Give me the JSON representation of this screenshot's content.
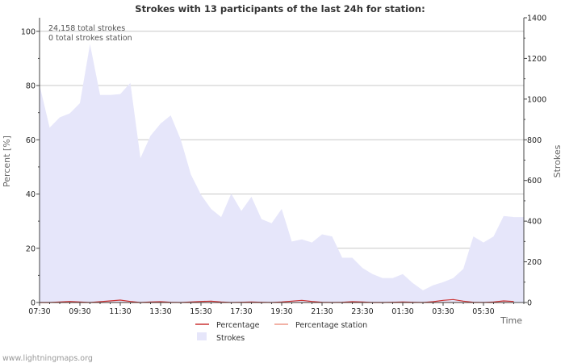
{
  "chart_data": {
    "type": "area",
    "title": "Strokes with 13 participants of the last 24h for station:",
    "ylabel_left": "Percent   [%]",
    "ylabel_right": "Strokes",
    "xlabel": "Time",
    "ylim_left": [
      0,
      105
    ],
    "ylim_right": [
      0,
      1400
    ],
    "yticks_left": [
      0,
      20,
      40,
      60,
      80,
      100
    ],
    "yticks_right": [
      0,
      200,
      400,
      600,
      800,
      1000,
      1200,
      1400
    ],
    "xtick_labels": [
      "07:30",
      "09:30",
      "11:30",
      "13:30",
      "15:30",
      "17:30",
      "19:30",
      "21:30",
      "23:30",
      "01:30",
      "03:30",
      "05:30"
    ],
    "annotations": [
      "24,158 total strokes",
      "0 total strokes station"
    ],
    "legend": [
      {
        "name": "Percentage",
        "color": "#cc3333"
      },
      {
        "name": "Percentage station",
        "color": "#ee9988"
      },
      {
        "name": "Strokes",
        "color": "#e6e6fa"
      }
    ],
    "x_interval_minutes": 30,
    "series": [
      {
        "name": "Strokes",
        "axis": "right",
        "values": [
          1070,
          860,
          910,
          930,
          980,
          1270,
          1020,
          1020,
          1025,
          1080,
          710,
          820,
          880,
          920,
          800,
          630,
          530,
          460,
          420,
          535,
          450,
          520,
          410,
          390,
          460,
          300,
          310,
          295,
          335,
          325,
          220,
          220,
          170,
          140,
          120,
          120,
          140,
          95,
          60,
          85,
          100,
          120,
          165,
          325,
          295,
          325,
          425,
          420
        ]
      },
      {
        "name": "Percentage",
        "axis": "left",
        "values": [
          0,
          0,
          0.2,
          0.4,
          0.2,
          0,
          0.3,
          0.6,
          0.9,
          0.4,
          0,
          0.2,
          0.3,
          0.1,
          0,
          0.2,
          0.4,
          0.5,
          0.2,
          0,
          0.1,
          0.2,
          0.1,
          0,
          0.2,
          0.5,
          0.8,
          0.4,
          0.1,
          0,
          0.1,
          0.3,
          0.2,
          0,
          0,
          0.1,
          0.2,
          0.1,
          0,
          0.3,
          0.8,
          1.1,
          0.5,
          0.1,
          0,
          0.2,
          0.6,
          0.4
        ]
      },
      {
        "name": "Percentage station",
        "axis": "left",
        "values": [
          0,
          0,
          0,
          0,
          0,
          0,
          0,
          0,
          0,
          0,
          0,
          0,
          0,
          0,
          0,
          0,
          0,
          0,
          0,
          0,
          0,
          0,
          0,
          0,
          0,
          0,
          0,
          0,
          0,
          0,
          0,
          0,
          0,
          0,
          0,
          0,
          0,
          0,
          0,
          0,
          0,
          0,
          0,
          0,
          0,
          0,
          0,
          0
        ]
      }
    ]
  },
  "footer": {
    "source": "www.lightningmaps.org"
  }
}
